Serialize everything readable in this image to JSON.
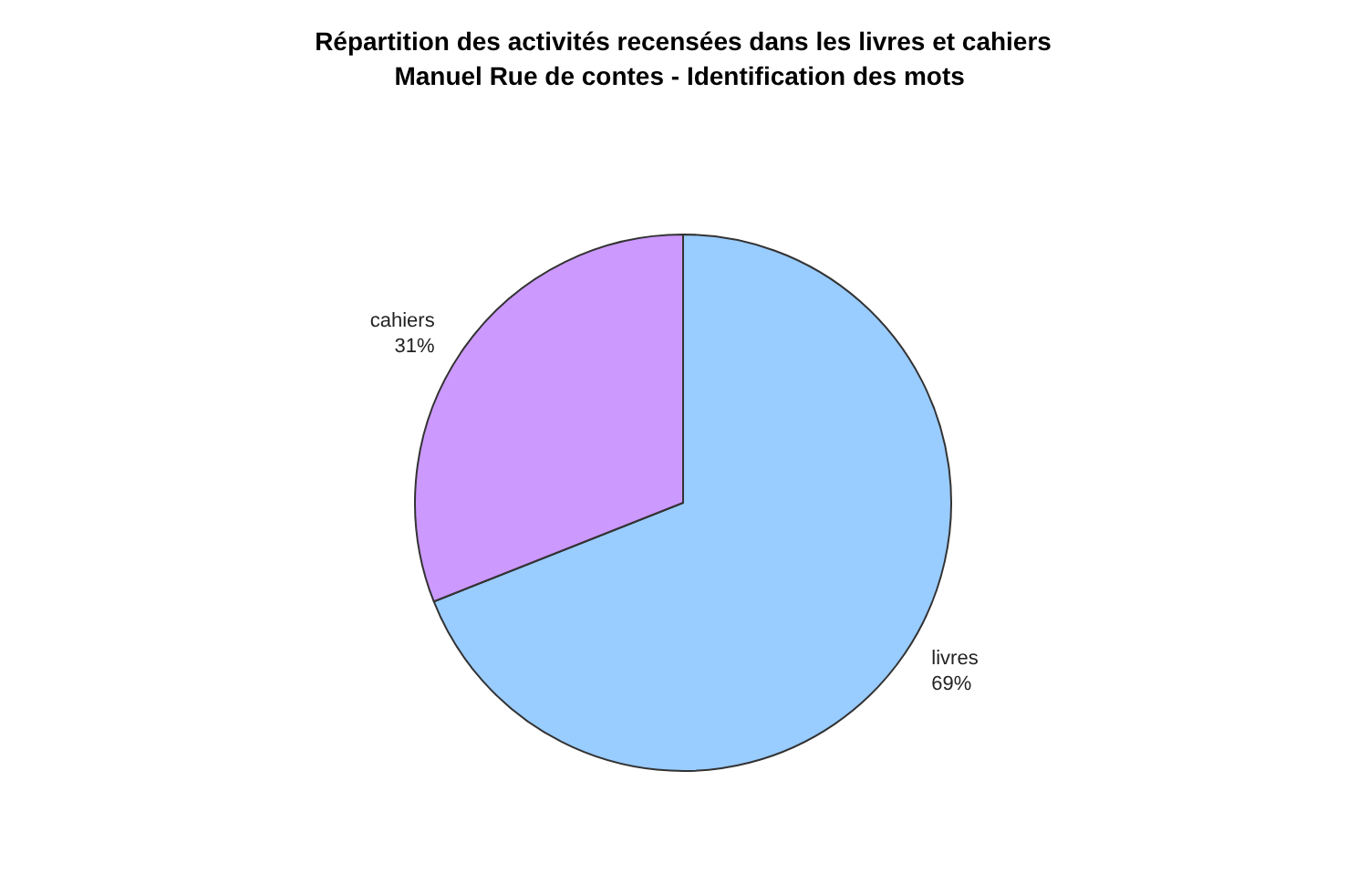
{
  "chart_data": {
    "type": "pie",
    "title": "Répartition des activités recensées dans les livres et cahiers",
    "subtitle": "Manuel Rue de contes  - Identification des mots",
    "categories": [
      "livres",
      "cahiers"
    ],
    "values": [
      69,
      31
    ],
    "value_labels": [
      "69%",
      "31%"
    ],
    "colors": [
      "#99ccff",
      "#cc99ff"
    ]
  }
}
